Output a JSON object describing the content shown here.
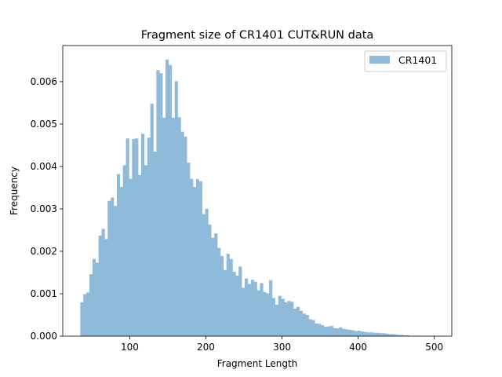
{
  "chart_data": {
    "type": "bar",
    "title": "Fragment size of CR1401 CUT&RUN data",
    "xlabel": "Fragment Length",
    "ylabel": "Frequency",
    "xlim": [
      12,
      523
    ],
    "ylim": [
      0,
      0.00685
    ],
    "x_ticks": [
      100,
      200,
      300,
      400,
      500
    ],
    "x_tick_labels": [
      "100",
      "200",
      "300",
      "400",
      "500"
    ],
    "y_ticks": [
      0,
      0.001,
      0.002,
      0.003,
      0.004,
      0.005,
      0.006
    ],
    "y_tick_labels": [
      "0.000",
      "0.001",
      "0.002",
      "0.003",
      "0.004",
      "0.005",
      "0.006"
    ],
    "bin_start": 35,
    "bin_width": 4,
    "series": [
      {
        "name": "CR1401",
        "color": "#8fbad9",
        "values": [
          0.0008,
          0.00099,
          0.00103,
          0.00146,
          0.00182,
          0.00173,
          0.00237,
          0.00253,
          0.00229,
          0.00319,
          0.00327,
          0.00307,
          0.00382,
          0.00352,
          0.00403,
          0.00466,
          0.00371,
          0.00465,
          0.00466,
          0.0038,
          0.00477,
          0.00403,
          0.00468,
          0.00548,
          0.00435,
          0.00627,
          0.0062,
          0.00515,
          0.00652,
          0.00639,
          0.00515,
          0.00601,
          0.00516,
          0.00482,
          0.0047,
          0.00409,
          0.00371,
          0.00352,
          0.0037,
          0.00365,
          0.00288,
          0.003,
          0.00263,
          0.00232,
          0.00242,
          0.00208,
          0.00189,
          0.00156,
          0.00194,
          0.00182,
          0.00152,
          0.00143,
          0.00164,
          0.00114,
          0.00136,
          0.00123,
          0.00133,
          0.00128,
          0.00108,
          0.00125,
          0.00104,
          0.00101,
          0.00132,
          0.0009,
          0.00074,
          0.00095,
          0.00088,
          0.0008,
          0.00083,
          0.00081,
          0.00065,
          0.00069,
          0.0006,
          0.00053,
          0.0005,
          0.0004,
          0.00038,
          0.0003,
          0.00029,
          0.00026,
          0.00022,
          0.00023,
          0.00024,
          0.00019,
          0.00018,
          0.00021,
          0.00017,
          0.00016,
          0.00015,
          0.00014,
          0.00012,
          0.00013,
          0.00011,
          0.0001,
          9e-05,
          9e-05,
          8e-05,
          8e-05,
          7e-05,
          7e-05,
          6e-05,
          5e-05,
          5e-05,
          4e-05,
          3e-05,
          3e-05,
          2e-05,
          2e-05,
          1e-05,
          1e-05,
          1e-05,
          1e-05,
          1e-05,
          5e-06,
          5e-06,
          5e-06
        ]
      }
    ],
    "legend": {
      "position": "upper right",
      "entries": [
        "CR1401"
      ]
    },
    "grid": false
  }
}
